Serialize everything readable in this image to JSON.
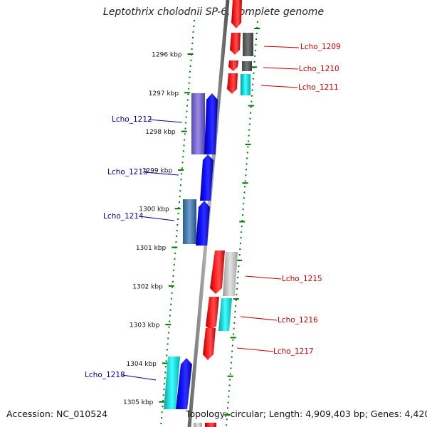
{
  "title": "Leptothrix cholodnii SP-6, complete genome",
  "accession": "Accession: NC_010524",
  "topology": "Topology: circular; Length: 4,909,403 bp; Genes: 4,420",
  "colors": {
    "forward_gene": "#ff0000",
    "reverse_gene": "#0000ff",
    "backbone": "#888888",
    "tick": "#007700",
    "forward_label": "#cc0000",
    "reverse_label": "#0000aa"
  },
  "kbp_ticks": [
    {
      "kbp": 1296,
      "label": "1296 kbp"
    },
    {
      "kbp": 1297,
      "label": "1297 kbp"
    },
    {
      "kbp": 1298,
      "label": "1298 kbp"
    },
    {
      "kbp": 1299,
      "label": "1299 kbp"
    },
    {
      "kbp": 1300,
      "label": "1300 kbp"
    },
    {
      "kbp": 1301,
      "label": "1301 kbp"
    },
    {
      "kbp": 1302,
      "label": "1302 kbp"
    },
    {
      "kbp": 1303,
      "label": "1303 kbp"
    },
    {
      "kbp": 1304,
      "label": "1304 kbp"
    },
    {
      "kbp": 1305,
      "label": "1305 kbp"
    }
  ],
  "gene_labels": [
    {
      "name": "Lcho_1209",
      "strand": "forward"
    },
    {
      "name": "Lcho_1210",
      "strand": "forward"
    },
    {
      "name": "Lcho_1211",
      "strand": "forward"
    },
    {
      "name": "Lcho_1212",
      "strand": "reverse"
    },
    {
      "name": "Lcho_1213",
      "strand": "reverse"
    },
    {
      "name": "Lcho_1214",
      "strand": "reverse"
    },
    {
      "name": "Lcho_1215",
      "strand": "forward"
    },
    {
      "name": "Lcho_1216",
      "strand": "forward"
    },
    {
      "name": "Lcho_1217",
      "strand": "forward"
    },
    {
      "name": "Lcho_1218",
      "strand": "reverse"
    }
  ]
}
